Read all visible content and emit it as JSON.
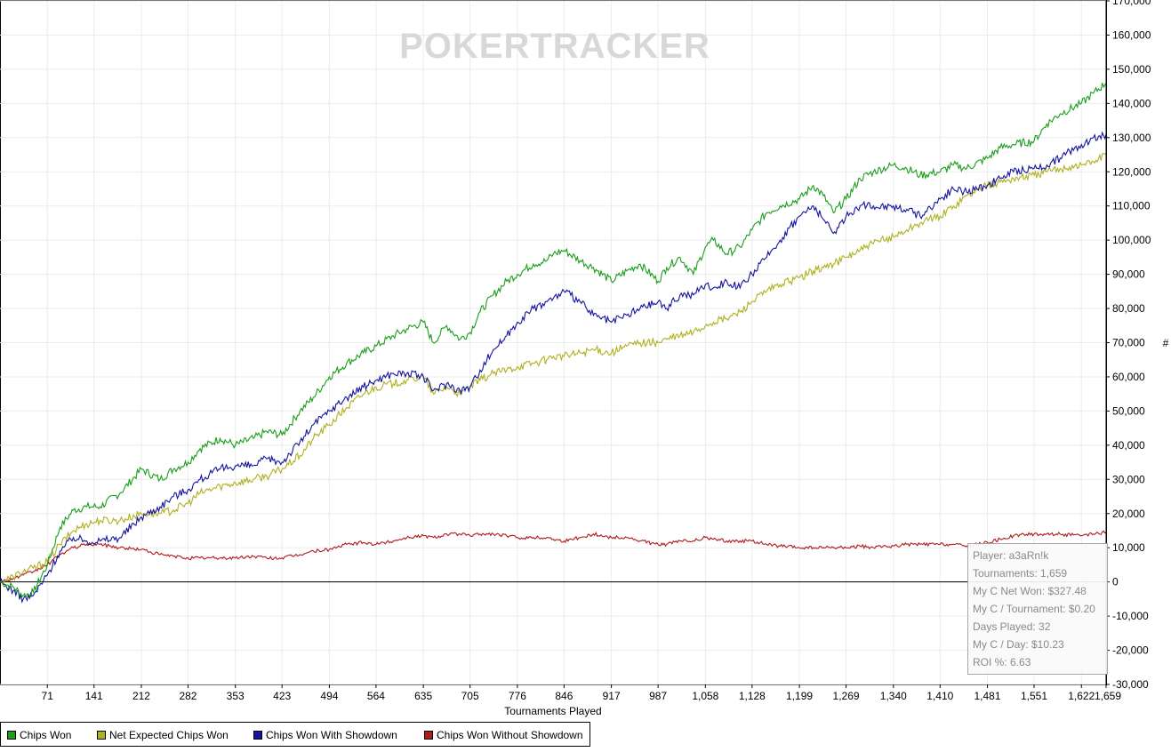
{
  "watermark": "POKERTRACKER",
  "tooltip": {
    "lines": [
      "Player: a3aRn!k",
      "Tournaments: 1,659",
      "My C Net Won: $327.48",
      "My C / Tournament: $0.20",
      "Days Played: 32",
      "My C / Day: $10.23",
      "ROI %: 6.63"
    ]
  },
  "chart_data": {
    "type": "line",
    "xlabel": "Tournaments Played",
    "ylabel": "#",
    "xlim": [
      0,
      1659
    ],
    "ylim": [
      -30000,
      170000
    ],
    "grid": true,
    "legend_position": "bottom-left",
    "x_ticks": [
      "71",
      "141",
      "212",
      "282",
      "353",
      "423",
      "494",
      "564",
      "635",
      "705",
      "776",
      "846",
      "917",
      "987",
      "1,058",
      "1,128",
      "1,199",
      "1,269",
      "1,340",
      "1,410",
      "1,481",
      "1,551",
      "1,622",
      "1,659"
    ],
    "x_tick_values": [
      71,
      141,
      212,
      282,
      353,
      423,
      494,
      564,
      635,
      705,
      776,
      846,
      917,
      987,
      1058,
      1128,
      1199,
      1269,
      1340,
      1410,
      1481,
      1551,
      1622,
      1659
    ],
    "y_ticks": [
      "-30,000",
      "-20,000",
      "-10,000",
      "0",
      "10,000",
      "20,000",
      "30,000",
      "40,000",
      "50,000",
      "60,000",
      "70,000",
      "80,000",
      "90,000",
      "100,000",
      "110,000",
      "120,000",
      "130,000",
      "140,000",
      "150,000",
      "160,000",
      "170,000"
    ],
    "y_tick_values": [
      -30000,
      -20000,
      -10000,
      0,
      10000,
      20000,
      30000,
      40000,
      50000,
      60000,
      70000,
      80000,
      90000,
      100000,
      110000,
      120000,
      130000,
      140000,
      150000,
      160000,
      170000
    ],
    "series": [
      {
        "name": "Chips Won",
        "color": "#1a9e1a",
        "x": [
          0,
          20,
          35,
          50,
          71,
          90,
          110,
          130,
          150,
          180,
          212,
          240,
          260,
          282,
          300,
          330,
          353,
          380,
          400,
          423,
          450,
          470,
          494,
          520,
          545,
          564,
          590,
          610,
          635,
          650,
          670,
          690,
          705,
          720,
          740,
          760,
          776,
          800,
          820,
          830,
          846,
          870,
          890,
          917,
          940,
          960,
          987,
          1000,
          1020,
          1040,
          1058,
          1070,
          1090,
          1110,
          1128,
          1150,
          1170,
          1199,
          1220,
          1235,
          1250,
          1269,
          1290,
          1310,
          1340,
          1360,
          1380,
          1410,
          1430,
          1450,
          1481,
          1500,
          1520,
          1551,
          1570,
          1590,
          1622,
          1640,
          1659
        ],
        "y": [
          0,
          -1500,
          -4000,
          -3000,
          5000,
          16000,
          21000,
          22000,
          22000,
          26000,
          33000,
          30000,
          33000,
          35000,
          39000,
          42000,
          40000,
          42000,
          44000,
          43000,
          50000,
          54000,
          60000,
          64000,
          67000,
          69000,
          72000,
          74000,
          76000,
          70000,
          75000,
          71000,
          73000,
          79000,
          84000,
          88000,
          90000,
          93000,
          94000,
          96000,
          97000,
          94000,
          92000,
          88000,
          91000,
          93000,
          88000,
          92000,
          95000,
          90000,
          98000,
          100000,
          96000,
          98000,
          103000,
          108000,
          110000,
          112000,
          116000,
          113000,
          108000,
          112000,
          118000,
          120000,
          122000,
          121000,
          119000,
          120000,
          122000,
          121000,
          124000,
          127000,
          128000,
          129000,
          134000,
          137000,
          140000,
          143000,
          146000
        ]
      },
      {
        "name": "Net Expected Chips Won",
        "color": "#b0b020",
        "x": [
          0,
          20,
          35,
          50,
          71,
          90,
          110,
          130,
          150,
          180,
          212,
          240,
          260,
          282,
          300,
          330,
          353,
          380,
          400,
          423,
          450,
          470,
          494,
          520,
          545,
          564,
          590,
          610,
          635,
          650,
          670,
          690,
          705,
          720,
          740,
          760,
          776,
          800,
          820,
          830,
          846,
          870,
          890,
          917,
          940,
          960,
          987,
          1000,
          1020,
          1040,
          1058,
          1070,
          1090,
          1110,
          1128,
          1150,
          1170,
          1199,
          1220,
          1235,
          1250,
          1269,
          1290,
          1310,
          1340,
          1360,
          1380,
          1410,
          1430,
          1450,
          1481,
          1500,
          1520,
          1551,
          1570,
          1590,
          1622,
          1640,
          1659
        ],
        "y": [
          0,
          1500,
          3000,
          4000,
          6000,
          11000,
          15000,
          17000,
          18000,
          18000,
          20000,
          20000,
          21000,
          23000,
          26000,
          28000,
          29000,
          30000,
          31000,
          33000,
          37000,
          42000,
          46000,
          51000,
          55000,
          57000,
          58000,
          59000,
          60000,
          55000,
          57000,
          55000,
          57000,
          59000,
          61000,
          62000,
          63000,
          64000,
          65000,
          66000,
          66000,
          67000,
          68000,
          67000,
          69000,
          70000,
          70000,
          71000,
          72000,
          73000,
          75000,
          76000,
          77000,
          79000,
          82000,
          85000,
          87000,
          89000,
          91000,
          92000,
          93000,
          95000,
          97000,
          99000,
          101000,
          103000,
          105000,
          107000,
          110000,
          113000,
          116000,
          117000,
          118000,
          119000,
          120000,
          121000,
          122000,
          123000,
          125000
        ]
      },
      {
        "name": "Chips Won With Showdown",
        "color": "#1414a0",
        "x": [
          0,
          20,
          35,
          50,
          71,
          90,
          110,
          130,
          150,
          180,
          212,
          240,
          260,
          282,
          300,
          330,
          353,
          380,
          400,
          423,
          450,
          470,
          494,
          520,
          545,
          564,
          590,
          610,
          635,
          650,
          670,
          690,
          705,
          720,
          740,
          760,
          776,
          800,
          820,
          830,
          846,
          870,
          890,
          917,
          940,
          960,
          987,
          1000,
          1020,
          1040,
          1058,
          1070,
          1090,
          1110,
          1128,
          1150,
          1170,
          1199,
          1220,
          1235,
          1250,
          1269,
          1290,
          1310,
          1340,
          1360,
          1380,
          1410,
          1430,
          1450,
          1481,
          1500,
          1520,
          1551,
          1570,
          1590,
          1622,
          1640,
          1659
        ],
        "y": [
          0,
          -2500,
          -5000,
          -4000,
          2000,
          9000,
          13000,
          12000,
          12000,
          13000,
          19000,
          22000,
          25000,
          27000,
          30000,
          33000,
          34000,
          34000,
          36000,
          35000,
          41000,
          46000,
          50000,
          54000,
          57000,
          59000,
          61000,
          61000,
          60000,
          56000,
          58000,
          56000,
          57000,
          62000,
          68000,
          72000,
          76000,
          80000,
          82000,
          83000,
          85000,
          82000,
          78000,
          76000,
          78000,
          80000,
          82000,
          80000,
          84000,
          84000,
          87000,
          86000,
          88000,
          86000,
          90000,
          95000,
          100000,
          107000,
          110000,
          106000,
          102000,
          107000,
          110000,
          110000,
          110000,
          109000,
          107000,
          112000,
          115000,
          114000,
          116000,
          118000,
          120000,
          121000,
          122000,
          124000,
          128000,
          130000,
          131000
        ]
      },
      {
        "name": "Chips Won Without Showdown",
        "color": "#b01a1a",
        "x": [
          0,
          20,
          35,
          50,
          71,
          90,
          110,
          130,
          150,
          180,
          212,
          240,
          260,
          282,
          300,
          330,
          353,
          380,
          400,
          423,
          450,
          470,
          494,
          520,
          545,
          564,
          590,
          610,
          635,
          650,
          670,
          690,
          705,
          720,
          740,
          760,
          776,
          800,
          820,
          830,
          846,
          870,
          890,
          917,
          940,
          960,
          987,
          1000,
          1020,
          1040,
          1058,
          1070,
          1090,
          1110,
          1128,
          1150,
          1170,
          1199,
          1220,
          1235,
          1250,
          1269,
          1290,
          1310,
          1340,
          1360,
          1380,
          1410,
          1430,
          1450,
          1481,
          1500,
          1520,
          1551,
          1570,
          1590,
          1622,
          1640,
          1659
        ],
        "y": [
          0,
          1000,
          2000,
          3000,
          5000,
          8000,
          10000,
          11000,
          11000,
          10000,
          9500,
          8000,
          7500,
          7000,
          7000,
          7000,
          7000,
          7500,
          7000,
          7000,
          8000,
          9000,
          9500,
          11000,
          11500,
          11000,
          12000,
          13000,
          13500,
          13000,
          14000,
          14000,
          13500,
          14000,
          14000,
          13500,
          13000,
          13000,
          13000,
          12500,
          12000,
          13000,
          14000,
          13000,
          13000,
          12000,
          11000,
          11000,
          12000,
          12000,
          13000,
          12500,
          12000,
          12000,
          12000,
          11000,
          10500,
          10000,
          10000,
          10000,
          10000,
          10000,
          10500,
          10000,
          10500,
          11000,
          11000,
          11000,
          11000,
          10500,
          11500,
          12500,
          13500,
          14000,
          14000,
          14000,
          13500,
          14000,
          14500
        ]
      }
    ]
  }
}
